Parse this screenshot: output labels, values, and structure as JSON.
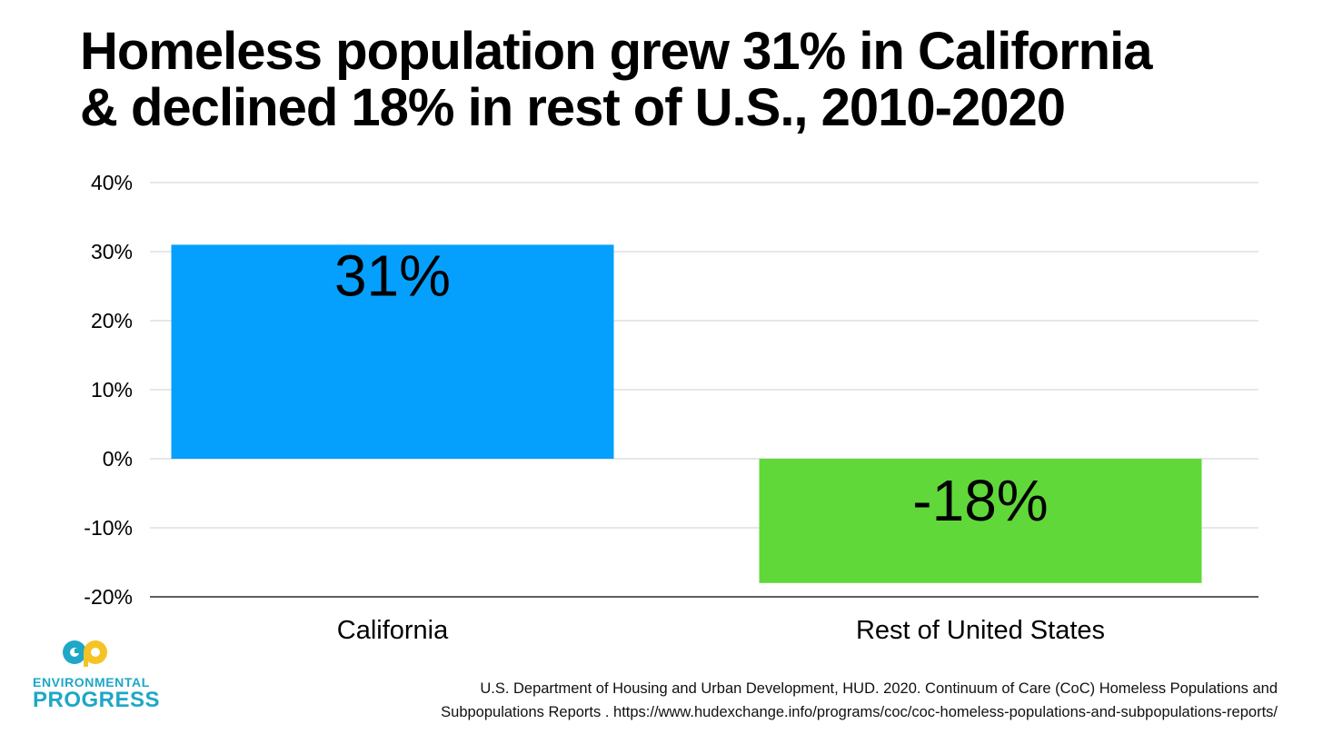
{
  "title": {
    "line1": "Homeless population grew 31% in California",
    "line2": "& declined 18% in rest of U.S., 2010-2020"
  },
  "chart_data": {
    "type": "bar",
    "title": "Homeless population grew 31% in California & declined 18% in rest of U.S., 2010-2020",
    "categories": [
      "California",
      "Rest of United States"
    ],
    "values": [
      31,
      -18
    ],
    "data_labels": [
      "31%",
      "-18%"
    ],
    "colors": [
      "#05a0fd",
      "#60d83a"
    ],
    "xlabel": "",
    "ylabel": "",
    "ylim": [
      -20,
      40
    ],
    "yticks": [
      40,
      30,
      20,
      10,
      0,
      -10,
      -20
    ],
    "ytick_labels": [
      "40%",
      "30%",
      "20%",
      "10%",
      "0%",
      "-10%",
      "-20%"
    ],
    "grid": true
  },
  "logo": {
    "line1": "ENVIRONMENTAL",
    "line2": "PROGRESS",
    "colors": {
      "teal": "#1ea7c7",
      "yellow": "#f6c324"
    }
  },
  "source": {
    "line1": "U.S. Department of Housing and Urban Development, HUD. 2020. Continuum of Care (CoC) Homeless Populations and",
    "line2": "Subpopulations Reports . https://www.hudexchange.info/programs/coc/coc-homeless-populations-and-subpopulations-reports/"
  }
}
